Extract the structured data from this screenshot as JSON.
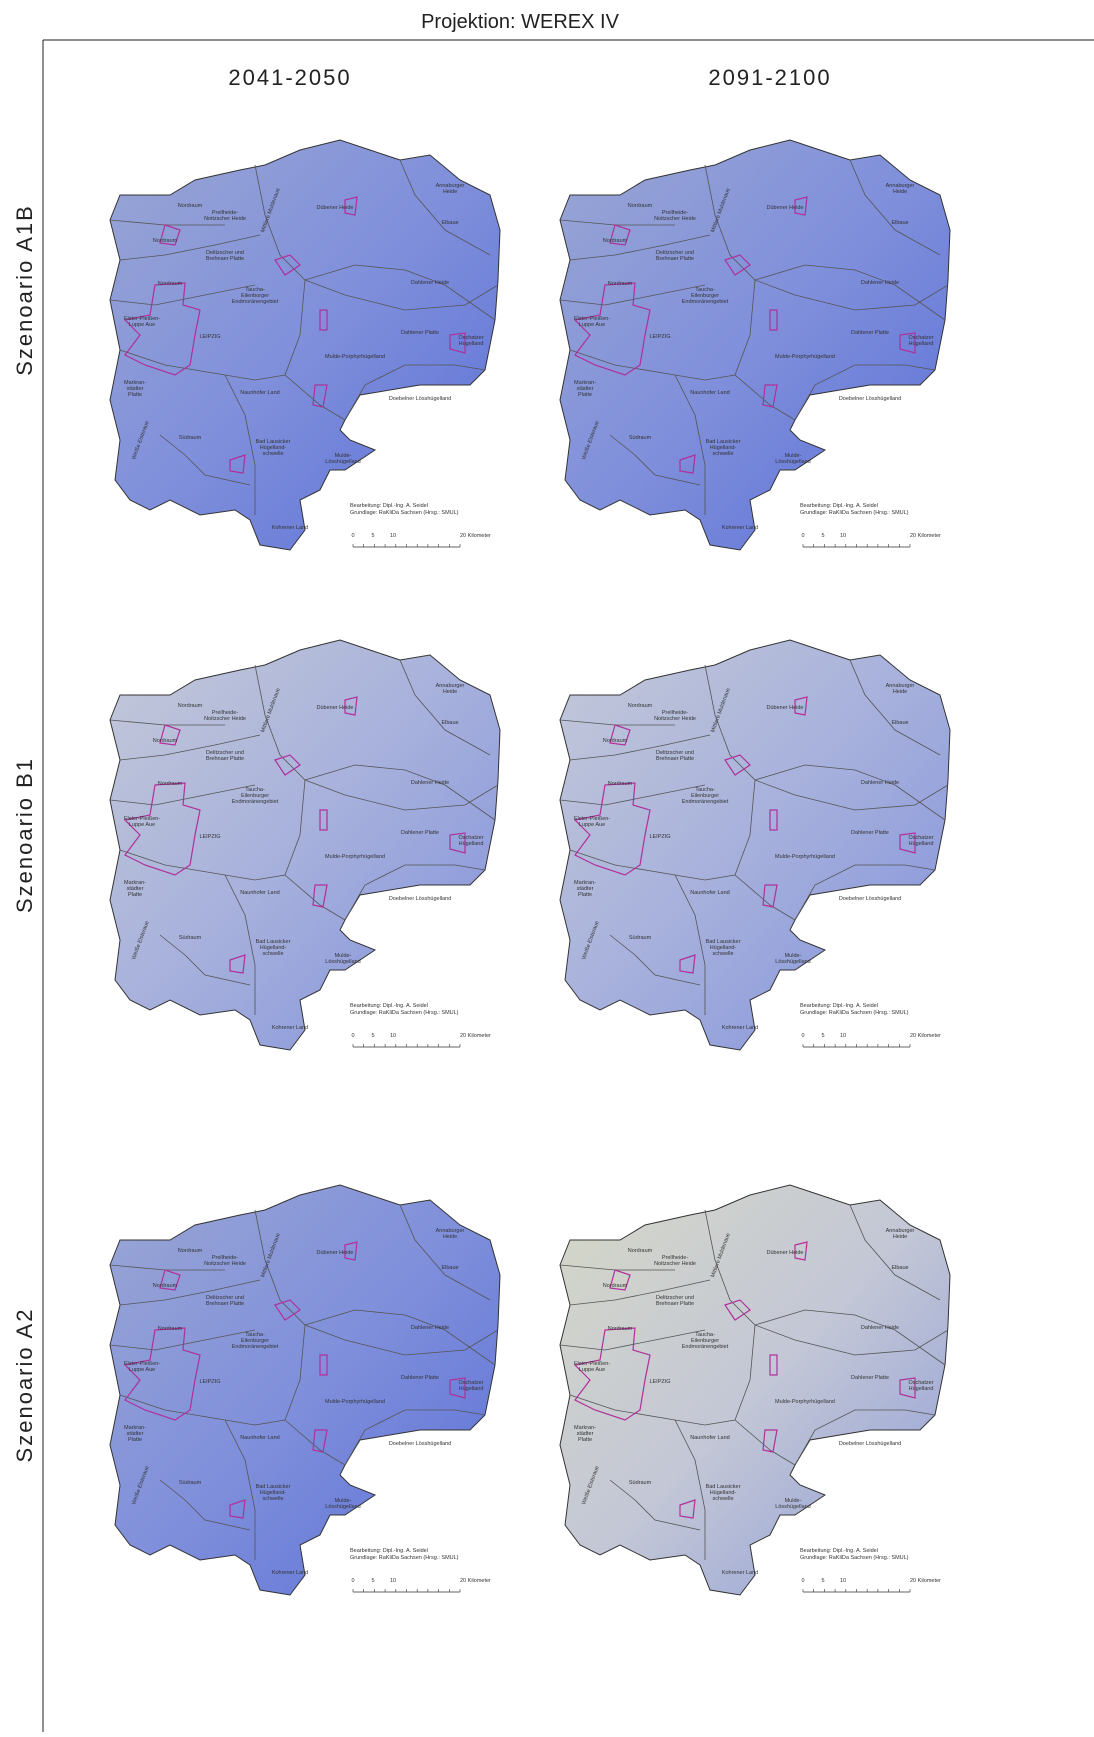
{
  "header": {
    "title": "Projektion: WEREX IV"
  },
  "columns": [
    "2041-2050",
    "2091-2100"
  ],
  "rows": [
    "Szenoario A1B",
    "Szenoario B1",
    "Szenoario A2"
  ],
  "map": {
    "labels": [
      [
        "Nordraum"
      ],
      [
        "Prellheide-",
        "Noitzscher Heide"
      ],
      [
        "Dübener Heide"
      ],
      [
        "Annaburger",
        "Heide"
      ],
      [
        "Elbaue"
      ],
      [
        "Mittlere Muldenaue"
      ],
      [
        "Nordraum"
      ],
      [
        "Delitzscher und",
        "Brehnaer Platte"
      ],
      [
        "Nordraum"
      ],
      [
        "Taucha-",
        "Eilenburger",
        "Endmoränengebiet"
      ],
      [
        "Dahlener Heide"
      ],
      [
        "Elster-Pleißen-",
        "Luppe Aue"
      ],
      [
        "LEIPZIG"
      ],
      [
        "Dahlener Platte"
      ],
      [
        "Oschatzer",
        "Hügelland"
      ],
      [
        "Mulde-Porphyrhügelland"
      ],
      [
        "Markran-",
        "städter",
        "Platte"
      ],
      [
        "Naunhofer Land"
      ],
      [
        "Doebelner Lösshügelland"
      ],
      [
        "Weiße Elsteraue"
      ],
      [
        "Südraum"
      ],
      [
        "Bad Lausicker",
        "Hügelland-",
        "schwelle"
      ],
      [
        "Mulde-",
        "Lösshügelland"
      ],
      [
        "Kohrener Land"
      ]
    ],
    "credits": [
      "Bearbeitung: Dipl.-Ing. A. Seidel",
      "Grundlage:   RaKliDa Sachsen (Hrsg.: SMUL)"
    ],
    "scale": [
      "0",
      "5",
      "10",
      "20 Kilometer"
    ]
  }
}
